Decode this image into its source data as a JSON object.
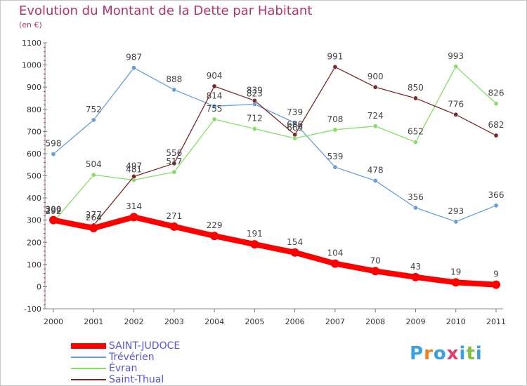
{
  "chart_data": {
    "type": "line",
    "title": "Evolution du Montant de la Dette par Habitant",
    "subtitle": "(en €)",
    "x": [
      "2000",
      "2001",
      "2002",
      "2003",
      "2004",
      "2005",
      "2006",
      "2007",
      "2008",
      "2009",
      "2010",
      "2011"
    ],
    "ylim": [
      -100,
      1100
    ],
    "yticks": [
      "-100",
      "0",
      "100",
      "200",
      "300",
      "400",
      "500",
      "600",
      "700",
      "800",
      "900",
      "1000",
      "1100"
    ],
    "grid": false,
    "legend_position": "bottom-left",
    "series": [
      {
        "name": "SAINT-JUDOCE",
        "color": "#ff0000",
        "values": [
          300,
          264,
          314,
          271,
          229,
          191,
          154,
          104,
          70,
          43,
          19,
          9
        ],
        "labels": [
          "300",
          "264",
          "314",
          "271",
          "229",
          "191",
          "154",
          "104",
          "70",
          "43",
          "19",
          "9"
        ]
      },
      {
        "name": "Trévérien",
        "color": "#6a9ed8",
        "values": [
          598,
          752,
          987,
          888,
          814,
          823,
          739,
          539,
          478,
          356,
          293,
          366
        ],
        "labels": [
          "598",
          "752",
          "987",
          "888",
          "814",
          "823",
          "739",
          "539",
          "478",
          "356",
          "293",
          "366"
        ]
      },
      {
        "name": "Évran",
        "color": "#88dd66",
        "values": [
          292,
          504,
          481,
          517,
          755,
          712,
          669,
          708,
          724,
          652,
          993,
          826
        ],
        "labels": [
          "292",
          "504",
          "481",
          "517",
          "755",
          "712",
          "669",
          "708",
          "724",
          "652",
          "993",
          "826"
        ]
      },
      {
        "name": "Saint-Thual",
        "color": "#7a2a2a",
        "values": [
          299,
          277,
          497,
          556,
          904,
          839,
          686,
          991,
          900,
          850,
          776,
          682
        ],
        "labels": [
          "299",
          "277",
          "497",
          "556",
          "904",
          "839",
          "686",
          "991",
          "900",
          "850",
          "776",
          "682"
        ]
      }
    ]
  },
  "logo": {
    "text": "Proxiti",
    "colors": [
      "#3aa0e0",
      "#f08020",
      "#3aa0e0",
      "#e04070",
      "#3aa0e0",
      "#80c040",
      "#3aa0e0"
    ]
  }
}
